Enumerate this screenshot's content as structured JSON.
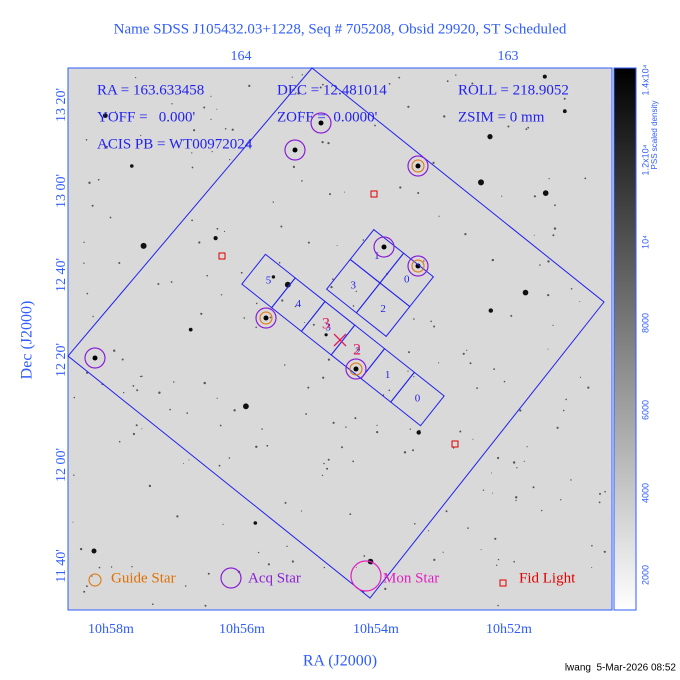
{
  "title": "Name SDSS J105432.03+1228, Seq # 705208, Obsid 29920, ST Scheduled",
  "top_axis": {
    "labels": [
      "164",
      "163"
    ]
  },
  "left_axis": {
    "title": "Dec (J2000)",
    "labels": [
      "13 20'",
      "13 00'",
      "12 40'",
      "12 20'",
      "12 00'",
      "11 40'"
    ]
  },
  "bottom_axis": {
    "title": "RA (J2000)",
    "labels": [
      "10h58m",
      "10h56m",
      "10h54m",
      "10h52m"
    ]
  },
  "info": [
    "RA = 163.633458",
    "DEC = 12.481014",
    "ROLL = 218.9052",
    "YOFF =   0.000'",
    "ZOFF =  0.0000'",
    "ZSIM = 0 mm",
    "ACIS PB = WT00972024"
  ],
  "s_array_chips": [
    "5",
    "4",
    "3",
    "2",
    "1",
    "0"
  ],
  "i_array_chips": [
    "1",
    "0",
    "3",
    "2"
  ],
  "aimpoint_labels": [
    "3",
    "2"
  ],
  "legend": [
    "Guide Star",
    "Acq Star",
    "Mon Star",
    "Fid Light"
  ],
  "colorbar": {
    "title": "PSS scaled density",
    "labels": [
      "1.4x10⁴",
      "1.2x10⁴",
      "10⁴",
      "8000",
      "6000",
      "4000",
      "2000"
    ]
  },
  "footer": "lwang  5-Mar-2026 08:52"
}
